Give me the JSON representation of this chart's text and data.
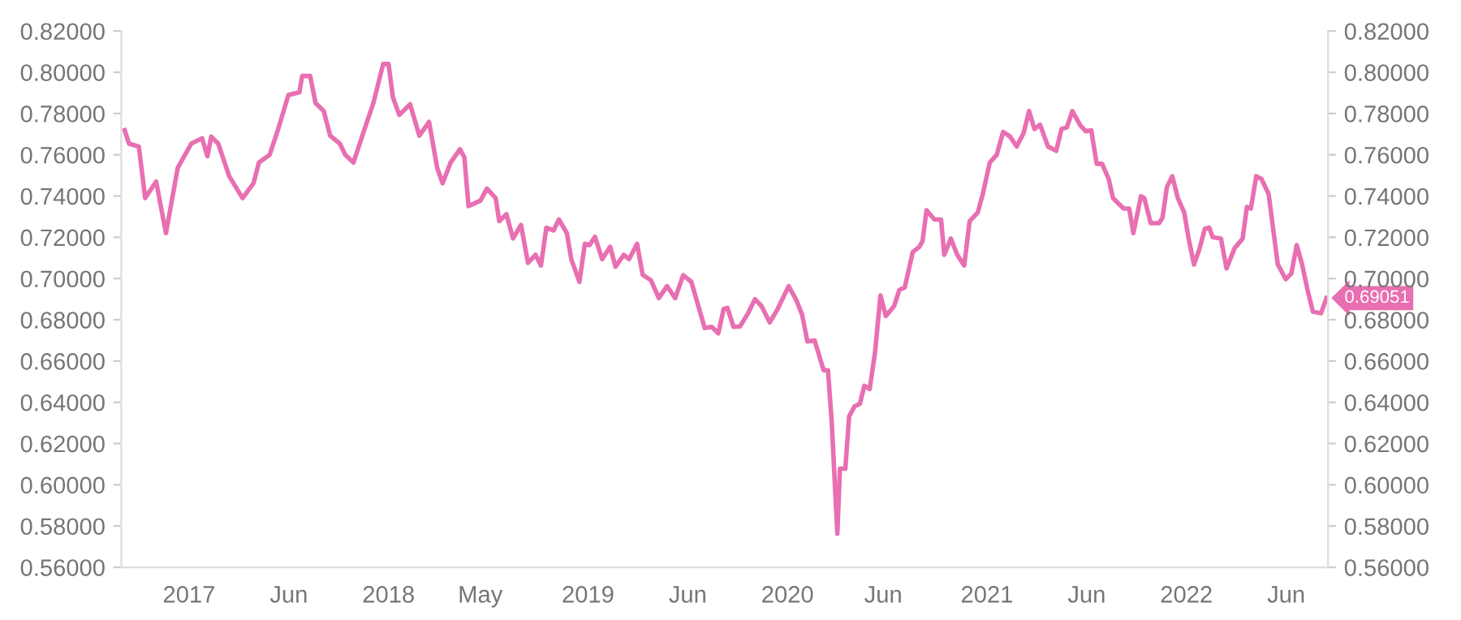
{
  "chart_data": {
    "type": "line",
    "x": [
      2016.677,
      2016.699,
      2016.748,
      2016.78,
      2016.835,
      2016.884,
      2016.943,
      2017.011,
      2017.065,
      2017.092,
      2017.111,
      2017.146,
      2017.201,
      2017.268,
      2017.323,
      2017.35,
      2017.404,
      2017.445,
      2017.498,
      2017.553,
      2017.567,
      2017.607,
      2017.634,
      2017.675,
      2017.707,
      2017.756,
      2017.783,
      2017.824,
      2017.878,
      2017.924,
      2017.973,
      2018.0,
      2018.022,
      2018.054,
      2018.108,
      2018.154,
      2018.203,
      2018.244,
      2018.271,
      2018.311,
      2018.358,
      2018.38,
      2018.401,
      2018.461,
      2018.493,
      2018.537,
      2018.555,
      2018.591,
      2018.624,
      2018.664,
      2018.699,
      2018.737,
      2018.764,
      2018.791,
      2018.827,
      2018.854,
      2018.894,
      2018.916,
      2018.957,
      2018.984,
      2019.008,
      2019.035,
      2019.071,
      2019.111,
      2019.138,
      2019.179,
      2019.206,
      2019.246,
      2019.274,
      2019.315,
      2019.355,
      2019.396,
      2019.437,
      2019.477,
      2019.518,
      2019.585,
      2019.62,
      2019.653,
      2019.68,
      2019.699,
      2019.729,
      2019.762,
      2019.802,
      2019.837,
      2019.87,
      2019.911,
      2019.951,
      2020.006,
      2020.046,
      2020.073,
      2020.1,
      2020.136,
      2020.181,
      2020.203,
      2020.222,
      2020.25,
      2020.263,
      2020.29,
      2020.309,
      2020.336,
      2020.363,
      2020.385,
      2020.412,
      2020.439,
      2020.466,
      2020.493,
      2020.534,
      2020.561,
      2020.588,
      2020.628,
      2020.661,
      2020.677,
      2020.697,
      2020.737,
      2020.77,
      2020.786,
      2020.819,
      2020.851,
      2020.886,
      2020.913,
      2020.954,
      2020.981,
      2021.014,
      2021.049,
      2021.081,
      2021.116,
      2021.149,
      2021.184,
      2021.211,
      2021.238,
      2021.266,
      2021.306,
      2021.347,
      2021.374,
      2021.401,
      2021.428,
      2021.469,
      2021.496,
      2021.523,
      2021.55,
      2021.577,
      2021.61,
      2021.632,
      2021.685,
      2021.713,
      2021.734,
      2021.772,
      2021.789,
      2021.821,
      2021.862,
      2021.88,
      2021.902,
      2021.929,
      2021.957,
      2021.989,
      2022.011,
      2022.038,
      2022.065,
      2022.092,
      2022.114,
      2022.132,
      2022.173,
      2022.201,
      2022.241,
      2022.282,
      2022.303,
      2022.323,
      2022.35,
      2022.376,
      2022.412,
      2022.458,
      2022.498,
      2022.526,
      2022.553,
      2022.58,
      2022.607,
      2022.634,
      2022.675,
      2022.702
    ],
    "series": [
      {
        "color": "#e86fb1",
        "values": [
          0.7719,
          0.7654,
          0.764,
          0.739,
          0.747,
          0.722,
          0.7536,
          0.7654,
          0.768,
          0.7593,
          0.7688,
          0.7654,
          0.7496,
          0.739,
          0.7462,
          0.7562,
          0.76,
          0.7719,
          0.789,
          0.7903,
          0.7982,
          0.7982,
          0.7851,
          0.7812,
          0.7693,
          0.7654,
          0.76,
          0.7562,
          0.7719,
          0.7851,
          0.804,
          0.804,
          0.7877,
          0.7793,
          0.7845,
          0.7693,
          0.7759,
          0.7536,
          0.7462,
          0.7562,
          0.7627,
          0.7588,
          0.7351,
          0.7378,
          0.7436,
          0.739,
          0.7278,
          0.7312,
          0.7194,
          0.726,
          0.7076,
          0.7115,
          0.7063,
          0.7246,
          0.7233,
          0.7286,
          0.722,
          0.7094,
          0.6984,
          0.7168,
          0.7162,
          0.7202,
          0.7094,
          0.7154,
          0.7057,
          0.7115,
          0.7094,
          0.7168,
          0.7018,
          0.6992,
          0.6905,
          0.6963,
          0.6905,
          0.7016,
          0.6984,
          0.676,
          0.6766,
          0.6734,
          0.6853,
          0.6858,
          0.6766,
          0.6768,
          0.6831,
          0.69,
          0.6866,
          0.6787,
          0.6853,
          0.6963,
          0.6892,
          0.6826,
          0.6695,
          0.67,
          0.6555,
          0.6555,
          0.6301,
          0.5763,
          0.6078,
          0.6078,
          0.6332,
          0.638,
          0.6393,
          0.648,
          0.6464,
          0.6642,
          0.6918,
          0.6818,
          0.6866,
          0.6945,
          0.6957,
          0.7128,
          0.7154,
          0.7181,
          0.7331,
          0.7286,
          0.7286,
          0.7115,
          0.7194,
          0.7115,
          0.7063,
          0.7278,
          0.732,
          0.7417,
          0.7562,
          0.76,
          0.7711,
          0.7688,
          0.764,
          0.7706,
          0.7812,
          0.7725,
          0.7746,
          0.764,
          0.7619,
          0.7725,
          0.7733,
          0.7812,
          0.7741,
          0.7714,
          0.7719,
          0.7556,
          0.7556,
          0.7483,
          0.739,
          0.7339,
          0.7339,
          0.722,
          0.7399,
          0.739,
          0.7268,
          0.7268,
          0.7294,
          0.7443,
          0.7496,
          0.739,
          0.732,
          0.7194,
          0.7068,
          0.7142,
          0.7241,
          0.7247,
          0.72,
          0.7194,
          0.7049,
          0.7146,
          0.7194,
          0.7347,
          0.7339,
          0.7496,
          0.7483,
          0.741,
          0.7068,
          0.6997,
          0.7024,
          0.7162,
          0.7068,
          0.6945,
          0.6839,
          0.6832,
          0.69051
        ]
      }
    ],
    "xlim": [
      2016.66,
      2022.71
    ],
    "xticks": [
      {
        "value": 2017,
        "label": "2017"
      },
      {
        "value": 2017.5,
        "label": "Jun"
      },
      {
        "value": 2018,
        "label": "2018"
      },
      {
        "value": 2018.46,
        "label": "May"
      },
      {
        "value": 2019,
        "label": "2019"
      },
      {
        "value": 2019.5,
        "label": "Jun"
      },
      {
        "value": 2020,
        "label": "2020"
      },
      {
        "value": 2020.48,
        "label": "Jun"
      },
      {
        "value": 2021,
        "label": "2021"
      },
      {
        "value": 2021.5,
        "label": "Jun"
      },
      {
        "value": 2022,
        "label": "2022"
      },
      {
        "value": 2022.5,
        "label": "Jun"
      }
    ],
    "ylim": [
      0.56,
      0.82
    ],
    "yticks": [
      {
        "value": 0.56,
        "label": "0.56000"
      },
      {
        "value": 0.58,
        "label": "0.58000"
      },
      {
        "value": 0.6,
        "label": "0.60000"
      },
      {
        "value": 0.62,
        "label": "0.62000"
      },
      {
        "value": 0.64,
        "label": "0.64000"
      },
      {
        "value": 0.66,
        "label": "0.66000"
      },
      {
        "value": 0.68,
        "label": "0.68000"
      },
      {
        "value": 0.7,
        "label": "0.70000"
      },
      {
        "value": 0.72,
        "label": "0.72000"
      },
      {
        "value": 0.74,
        "label": "0.74000"
      },
      {
        "value": 0.76,
        "label": "0.76000"
      },
      {
        "value": 0.78,
        "label": "0.78000"
      },
      {
        "value": 0.8,
        "label": "0.80000"
      },
      {
        "value": 0.82,
        "label": "0.82000"
      }
    ],
    "y2lim": [
      0.56,
      0.82
    ],
    "y2ticks": [
      {
        "value": 0.56,
        "label": "0.56000"
      },
      {
        "value": 0.58,
        "label": "0.58000"
      },
      {
        "value": 0.6,
        "label": "0.60000"
      },
      {
        "value": 0.62,
        "label": "0.62000"
      },
      {
        "value": 0.64,
        "label": "0.64000"
      },
      {
        "value": 0.66,
        "label": "0.66000"
      },
      {
        "value": 0.68,
        "label": "0.68000"
      },
      {
        "value": 0.7,
        "label": "0.70000"
      },
      {
        "value": 0.72,
        "label": "0.72000"
      },
      {
        "value": 0.74,
        "label": "0.74000"
      },
      {
        "value": 0.76,
        "label": "0.76000"
      },
      {
        "value": 0.78,
        "label": "0.78000"
      },
      {
        "value": 0.8,
        "label": "0.80000"
      },
      {
        "value": 0.82,
        "label": "0.82000"
      }
    ],
    "annotations": [
      {
        "text": "0.69051",
        "x": 2022.702,
        "y": 0.69051
      }
    ],
    "marker": "none",
    "line_style": "solid"
  }
}
